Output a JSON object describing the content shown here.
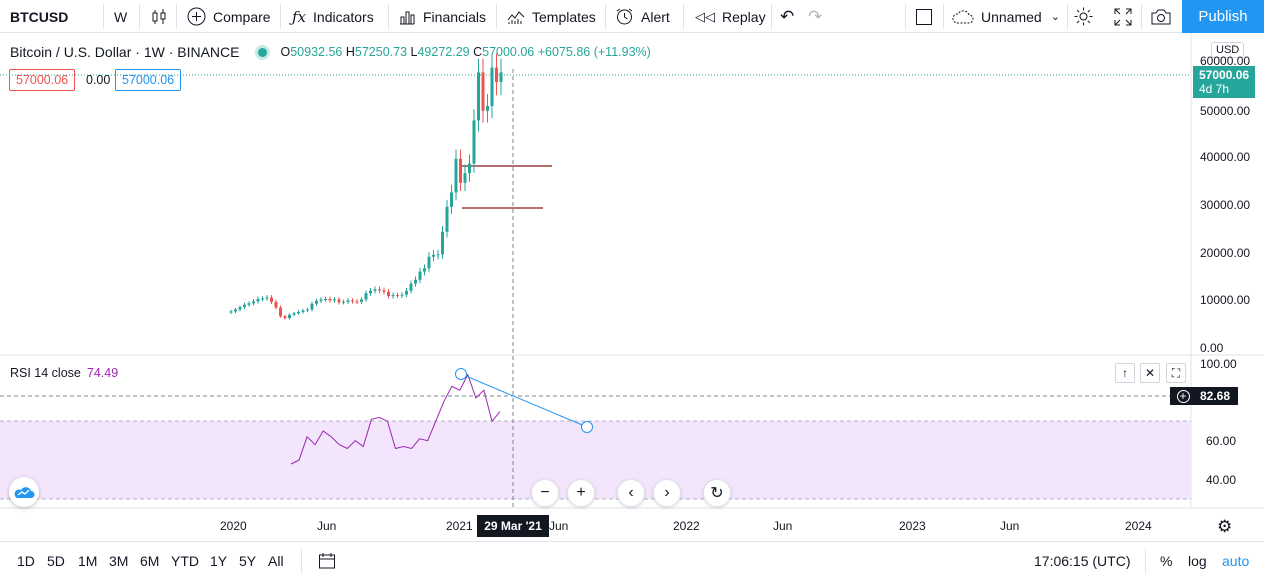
{
  "toolbar": {
    "symbol": "BTCUSD",
    "interval": "W",
    "compare": "Compare",
    "indicators": "Indicators",
    "financials": "Financials",
    "templates": "Templates",
    "alert": "Alert",
    "replay": "Replay",
    "layout_name": "Unnamed",
    "publish": "Publish"
  },
  "legend": {
    "title": "Bitcoin / U.S. Dollar · 1W · BINANCE",
    "o_label": "O",
    "o": "50932.56",
    "h_label": "H",
    "h": "57250.73",
    "l_label": "L",
    "l": "49272.29",
    "c_label": "C",
    "c": "57000.06",
    "change": "+6075.86 (+11.93%)",
    "sell_price": "57000.06",
    "spread": "0.00",
    "buy_price": "57000.06"
  },
  "price_axis": {
    "currency": "USD",
    "ticks": [
      "60000.00",
      "50000.00",
      "40000.00",
      "30000.00",
      "20000.00",
      "10000.00",
      "0.00"
    ],
    "last_price": "57000.06",
    "countdown": "4d 7h"
  },
  "rsi": {
    "label": "RSI 14 close",
    "value": "74.49",
    "ticks": [
      "100.00",
      "60.00",
      "40.00"
    ],
    "crosshair_value": "82.68"
  },
  "time_axis": {
    "ticks": [
      "2020",
      "Jun",
      "2021",
      "Jun",
      "2022",
      "Jun",
      "2023",
      "Jun",
      "2024"
    ],
    "crosshair_label": "29 Mar '21"
  },
  "bottom": {
    "ranges": [
      "1D",
      "5D",
      "1M",
      "3M",
      "6M",
      "YTD",
      "1Y",
      "5Y",
      "All"
    ],
    "clock": "17:06:15 (UTC)",
    "percent": "%",
    "log": "log",
    "auto": "auto"
  },
  "colors": {
    "up": "#26a69a",
    "down": "#ef5350",
    "accent": "#2196f3",
    "rsi": "#9c27b0",
    "rsi_band": "#f3e5fb"
  },
  "chart_data": {
    "type": "candlestick",
    "series_name": "Bitcoin / U.S. Dollar",
    "interval": "1W",
    "ylim": [
      0,
      62000
    ],
    "candles_approx_close": [
      7200,
      7600,
      8100,
      8600,
      8900,
      9300,
      9800,
      9900,
      10100,
      9200,
      8000,
      6200,
      5800,
      6500,
      6800,
      7100,
      7400,
      7600,
      8800,
      9400,
      9700,
      9800,
      9500,
      9700,
      9100,
      9200,
      9500,
      9300,
      9200,
      9700,
      11000,
      11500,
      11800,
      11600,
      11300,
      10400,
      10600,
      10500,
      10700,
      11500,
      13000,
      13800,
      15500,
      16200,
      18600,
      19000,
      19100,
      23800,
      29000,
      32000,
      39000,
      34000,
      36000,
      38000,
      47000,
      57000,
      49000,
      50000,
      58000,
      55000,
      57000
    ],
    "horizontal_lines": [
      38000,
      29000
    ],
    "rsi_approx": [
      48,
      50,
      62,
      58,
      65,
      62,
      58,
      56,
      60,
      57,
      71,
      72,
      70,
      56,
      57,
      56,
      61,
      60,
      70,
      80,
      88,
      86,
      94,
      82,
      86,
      70,
      75
    ],
    "rsi_band": [
      30,
      70
    ],
    "trendline_rsi": [
      [
        94,
        0
      ],
      [
        68,
        28
      ]
    ]
  }
}
